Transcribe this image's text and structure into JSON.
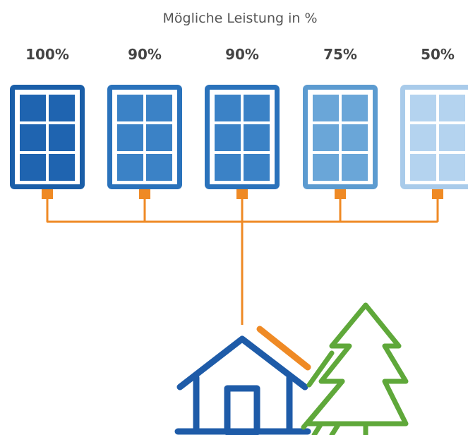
{
  "header": {
    "title": "Mögliche Leistung in %"
  },
  "panels": [
    {
      "label": "100%"
    },
    {
      "label": "90%"
    },
    {
      "label": "90%"
    },
    {
      "label": "75%"
    },
    {
      "label": "50%"
    }
  ]
}
